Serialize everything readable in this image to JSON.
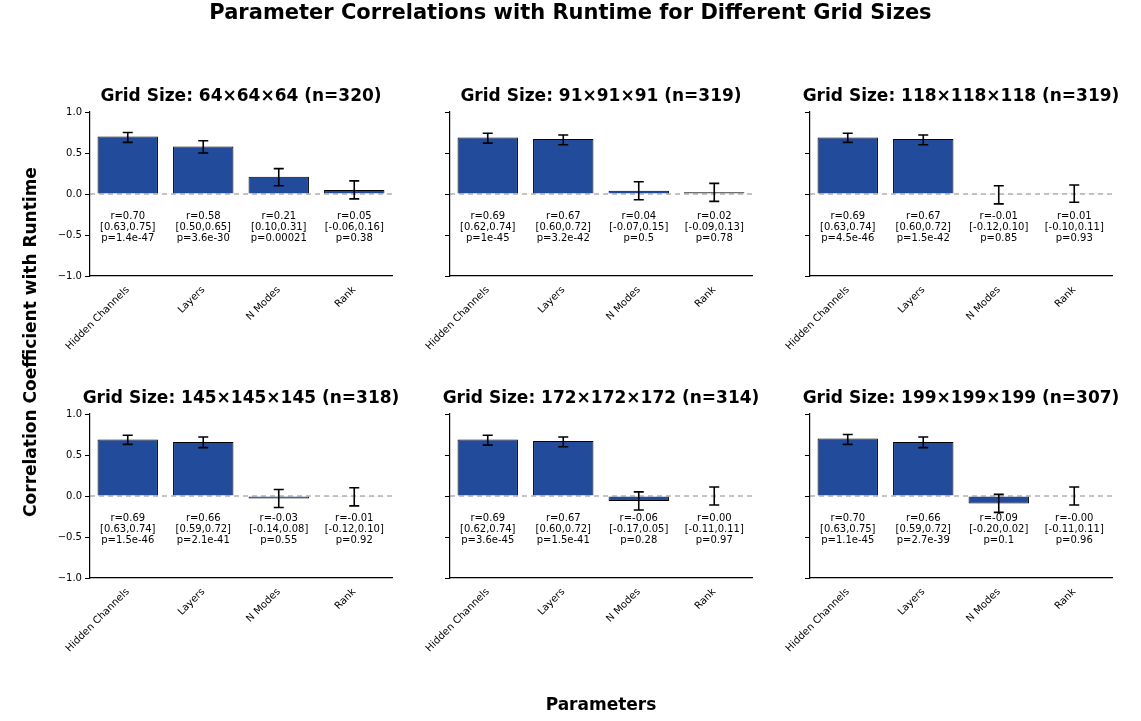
{
  "chart_data": [
    {
      "type": "bar",
      "title": "Grid Size: 64×64×64 (n=320)",
      "ylabel": "Correlation Coefficient with Runtime",
      "categories": [
        "Hidden Channels",
        "Layers",
        "N Modes",
        "Rank"
      ],
      "values": [
        0.7,
        0.58,
        0.21,
        0.05
      ],
      "color": "#234b9b",
      "errors": [
        [
          0.63,
          0.75
        ],
        [
          0.5,
          0.65
        ],
        [
          0.1,
          0.31
        ],
        [
          -0.06,
          0.16
        ]
      ],
      "value_labels": [
        "r=0.70\n[0.63,0.75]\np=1.4e-47",
        "r=0.58\n[0.50,0.65]\np=3.6e-30",
        "r=0.21\n[0.10,0.31]\np=0.00021",
        "r=0.05\n[-0.06,0.16]\np=0.38"
      ],
      "ylim": [
        -1,
        1
      ],
      "yticks": [
        {
          "value": -1,
          "label": "−1.0"
        },
        {
          "value": -0.5,
          "label": "−0.5"
        },
        {
          "value": 0,
          "label": "0.0"
        },
        {
          "value": 0.5,
          "label": "0.5"
        },
        {
          "value": 1,
          "label": "1.0"
        }
      ],
      "ref_lines": [
        {
          "axis": "y",
          "value": 0,
          "color": "#888888",
          "line_style": "dashed"
        }
      ]
    },
    {
      "type": "bar",
      "title": "Grid Size: 91×91×91 (n=319)",
      "annotations": [
        "Parameter Correlations with Runtime for Different Grid Sizes"
      ],
      "categories": [
        "Hidden Channels",
        "Layers",
        "N Modes",
        "Rank"
      ],
      "values": [
        0.69,
        0.67,
        0.04,
        0.02
      ],
      "color": "#234b9b",
      "errors": [
        [
          0.62,
          0.74
        ],
        [
          0.6,
          0.72
        ],
        [
          -0.07,
          0.15
        ],
        [
          -0.09,
          0.13
        ]
      ],
      "value_labels": [
        "r=0.69\n[0.62,0.74]\np=1e-45",
        "r=0.67\n[0.60,0.72]\np=3.2e-42",
        "r=0.04\n[-0.07,0.15]\np=0.5",
        "r=0.02\n[-0.09,0.13]\np=0.78"
      ],
      "ylim": [
        -1,
        1
      ],
      "yticks": [
        {
          "value": -1,
          "label": null
        },
        {
          "value": -0.5,
          "label": null
        },
        {
          "value": 0,
          "label": null
        },
        {
          "value": 0.5,
          "label": null
        },
        {
          "value": 1,
          "label": null
        }
      ],
      "tick_labels": "x",
      "ref_lines": [
        {
          "axis": "y",
          "value": 0,
          "color": "#888888",
          "line_style": "dashed"
        }
      ]
    },
    {
      "type": "bar",
      "title": "Grid Size: 118×118×118 (n=319)",
      "categories": [
        "Hidden Channels",
        "Layers",
        "N Modes",
        "Rank"
      ],
      "values": [
        0.69,
        0.67,
        -0.01,
        0.01
      ],
      "color": "#234b9b",
      "errors": [
        [
          0.63,
          0.74
        ],
        [
          0.6,
          0.72
        ],
        [
          -0.12,
          0.1
        ],
        [
          -0.1,
          0.11
        ]
      ],
      "value_labels": [
        "r=0.69\n[0.63,0.74]\np=4.5e-46",
        "r=0.67\n[0.60,0.72]\np=1.5e-42",
        "r=-0.01\n[-0.12,0.10]\np=0.85",
        "r=0.01\n[-0.10,0.11]\np=0.93"
      ],
      "ylim": [
        -1,
        1
      ],
      "yticks": [
        {
          "value": -1,
          "label": null
        },
        {
          "value": -0.5,
          "label": null
        },
        {
          "value": 0,
          "label": null
        },
        {
          "value": 0.5,
          "label": null
        },
        {
          "value": 1,
          "label": null
        }
      ],
      "tick_labels": "x",
      "ref_lines": [
        {
          "axis": "y",
          "value": 0,
          "color": "#888888",
          "line_style": "dashed"
        }
      ]
    },
    {
      "type": "bar",
      "title": "Grid Size: 145×145×145 (n=318)",
      "categories": [
        "Hidden Channels",
        "Layers",
        "N Modes",
        "Rank"
      ],
      "values": [
        0.69,
        0.66,
        -0.03,
        -0.01
      ],
      "color": "#234b9b",
      "errors": [
        [
          0.63,
          0.74
        ],
        [
          0.59,
          0.72
        ],
        [
          -0.14,
          0.08
        ],
        [
          -0.12,
          0.1
        ]
      ],
      "value_labels": [
        "r=0.69\n[0.63,0.74]\np=1.5e-46",
        "r=0.66\n[0.59,0.72]\np=2.1e-41",
        "r=-0.03\n[-0.14,0.08]\np=0.55",
        "r=-0.01\n[-0.12,0.10]\np=0.92"
      ],
      "ylim": [
        -1,
        1
      ],
      "yticks": [
        {
          "value": -1,
          "label": "−1.0"
        },
        {
          "value": -0.5,
          "label": "−0.5"
        },
        {
          "value": 0,
          "label": "0.0"
        },
        {
          "value": 0.5,
          "label": "0.5"
        },
        {
          "value": 1,
          "label": "1.0"
        }
      ],
      "ref_lines": [
        {
          "axis": "y",
          "value": 0,
          "color": "#888888",
          "line_style": "dashed"
        }
      ]
    },
    {
      "type": "bar",
      "title": "Grid Size: 172×172×172 (n=314)",
      "xlabel": "Parameters",
      "categories": [
        "Hidden Channels",
        "Layers",
        "N Modes",
        "Rank"
      ],
      "values": [
        0.69,
        0.67,
        -0.06,
        0.0
      ],
      "color": "#234b9b",
      "errors": [
        [
          0.62,
          0.74
        ],
        [
          0.6,
          0.72
        ],
        [
          -0.17,
          0.05
        ],
        [
          -0.11,
          0.11
        ]
      ],
      "value_labels": [
        "r=0.69\n[0.62,0.74]\np=3.6e-45",
        "r=0.67\n[0.60,0.72]\np=1.5e-41",
        "r=-0.06\n[-0.17,0.05]\np=0.28",
        "r=0.00\n[-0.11,0.11]\np=0.97"
      ],
      "ylim": [
        -1,
        1
      ],
      "yticks": [
        {
          "value": -1,
          "label": null
        },
        {
          "value": -0.5,
          "label": null
        },
        {
          "value": 0,
          "label": null
        },
        {
          "value": 0.5,
          "label": null
        },
        {
          "value": 1,
          "label": null
        }
      ],
      "tick_labels": "x",
      "ref_lines": [
        {
          "axis": "y",
          "value": 0,
          "color": "#888888",
          "line_style": "dashed"
        }
      ]
    },
    {
      "type": "bar",
      "title": "Grid Size: 199×199×199 (n=307)",
      "categories": [
        "Hidden Channels",
        "Layers",
        "N Modes",
        "Rank"
      ],
      "values": [
        0.7,
        0.66,
        -0.09,
        0
      ],
      "color": "#234b9b",
      "errors": [
        [
          0.63,
          0.75
        ],
        [
          0.59,
          0.72
        ],
        [
          -0.2,
          0.02
        ],
        [
          -0.11,
          0.11
        ]
      ],
      "value_labels": [
        "r=0.70\n[0.63,0.75]\np=1.1e-45",
        "r=0.66\n[0.59,0.72]\np=2.7e-39",
        "r=-0.09\n[-0.20,0.02]\np=0.1",
        "r=-0.00\n[-0.11,0.11]\np=0.96"
      ],
      "ylim": [
        -1,
        1
      ],
      "yticks": [
        {
          "value": -1,
          "label": null
        },
        {
          "value": -0.5,
          "label": null
        },
        {
          "value": 0,
          "label": null
        },
        {
          "value": 0.5,
          "label": null
        },
        {
          "value": 1,
          "label": null
        }
      ],
      "tick_labels": "x",
      "ref_lines": [
        {
          "axis": "y",
          "value": 0,
          "color": "#888888",
          "line_style": "dashed"
        }
      ]
    }
  ]
}
